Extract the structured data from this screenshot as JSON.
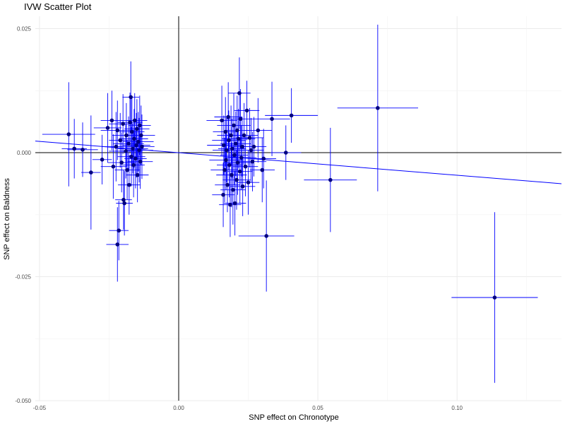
{
  "chart_data": {
    "type": "scatter",
    "title": "IVW Scatter Plot",
    "xlabel": "SNP effect on Chronotype",
    "ylabel": "SNP effect on Baldness",
    "xlim": [
      -0.0515,
      0.1375
    ],
    "ylim": [
      -0.05,
      0.0275
    ],
    "x_ticks": [
      {
        "value": -0.05,
        "label": "-0.05"
      },
      {
        "value": 0.0,
        "label": "0.00"
      },
      {
        "value": 0.05,
        "label": "0.05"
      },
      {
        "value": 0.1,
        "label": "0.10"
      }
    ],
    "y_ticks": [
      {
        "value": -0.05,
        "label": "-0.050"
      },
      {
        "value": -0.025,
        "label": "-0.025"
      },
      {
        "value": 0.0,
        "label": "0.000"
      },
      {
        "value": 0.025,
        "label": "0.025"
      }
    ],
    "grid": true,
    "reference_lines": {
      "x": 0,
      "y": 0
    },
    "ivw_line": {
      "intercept": 0,
      "slope": -0.0455
    },
    "colors": {
      "points": "#000080",
      "errorbars": "#0000ff",
      "ivw_line": "#0000ff",
      "reference": "#000000",
      "grid": "#ebebeb"
    },
    "points": [
      {
        "x": -0.0395,
        "y": 0.0037,
        "x_se": 0.0095,
        "y_se": 0.0105
      },
      {
        "x": -0.0375,
        "y": 0.0008,
        "x_se": 0.0045,
        "y_se": 0.006
      },
      {
        "x": -0.0345,
        "y": 0.0006,
        "x_se": 0.0055,
        "y_se": 0.0055
      },
      {
        "x": -0.0315,
        "y": -0.004,
        "x_se": 0.0035,
        "y_se": 0.0115
      },
      {
        "x": -0.0275,
        "y": -0.0014,
        "x_se": 0.0035,
        "y_se": 0.005
      },
      {
        "x": -0.0255,
        "y": 0.005,
        "x_se": 0.005,
        "y_se": 0.007
      },
      {
        "x": -0.024,
        "y": 0.0065,
        "x_se": 0.004,
        "y_se": 0.006
      },
      {
        "x": -0.0235,
        "y": -0.0028,
        "x_se": 0.0045,
        "y_se": 0.0065
      },
      {
        "x": -0.0225,
        "y": 0.0012,
        "x_se": 0.005,
        "y_se": 0.007
      },
      {
        "x": -0.022,
        "y": 0.0045,
        "x_se": 0.006,
        "y_se": 0.006
      },
      {
        "x": -0.022,
        "y": -0.0185,
        "x_se": 0.004,
        "y_se": 0.0075
      },
      {
        "x": -0.0215,
        "y": -0.0157,
        "x_se": 0.0035,
        "y_se": 0.006
      },
      {
        "x": -0.021,
        "y": 0.0025,
        "x_se": 0.004,
        "y_se": 0.0055
      },
      {
        "x": -0.0205,
        "y": -0.002,
        "x_se": 0.005,
        "y_se": 0.006
      },
      {
        "x": -0.02,
        "y": 0.0058,
        "x_se": 0.005,
        "y_se": 0.006
      },
      {
        "x": -0.0198,
        "y": -0.0095,
        "x_se": 0.003,
        "y_se": 0.006
      },
      {
        "x": -0.0195,
        "y": -0.0102,
        "x_se": 0.003,
        "y_se": 0.0065
      },
      {
        "x": -0.019,
        "y": 0.0003,
        "x_se": 0.006,
        "y_se": 0.0055
      },
      {
        "x": -0.0188,
        "y": 0.0035,
        "x_se": 0.005,
        "y_se": 0.0065
      },
      {
        "x": -0.0185,
        "y": -0.0035,
        "x_se": 0.0045,
        "y_se": 0.006
      },
      {
        "x": -0.018,
        "y": 0.0018,
        "x_se": 0.0055,
        "y_se": 0.0055
      },
      {
        "x": -0.0178,
        "y": -0.0065,
        "x_se": 0.004,
        "y_se": 0.006
      },
      {
        "x": -0.0175,
        "y": 0.0061,
        "x_se": 0.0045,
        "y_se": 0.006
      },
      {
        "x": -0.0172,
        "y": 0.0112,
        "x_se": 0.003,
        "y_se": 0.0072
      },
      {
        "x": -0.017,
        "y": -0.0008,
        "x_se": 0.005,
        "y_se": 0.006
      },
      {
        "x": -0.0168,
        "y": 0.0042,
        "x_se": 0.0045,
        "y_se": 0.007
      },
      {
        "x": -0.0165,
        "y": 0.0008,
        "x_se": 0.0055,
        "y_se": 0.005
      },
      {
        "x": -0.0162,
        "y": -0.0025,
        "x_se": 0.004,
        "y_se": 0.0065
      },
      {
        "x": -0.016,
        "y": 0.0028,
        "x_se": 0.005,
        "y_se": 0.006
      },
      {
        "x": -0.0158,
        "y": 0.0065,
        "x_se": 0.0045,
        "y_se": 0.0055
      },
      {
        "x": -0.0155,
        "y": -0.0012,
        "x_se": 0.004,
        "y_se": 0.006
      },
      {
        "x": -0.0152,
        "y": 0.0015,
        "x_se": 0.005,
        "y_se": 0.0065
      },
      {
        "x": -0.015,
        "y": 0.0048,
        "x_se": 0.0045,
        "y_se": 0.006
      },
      {
        "x": -0.0148,
        "y": -0.0045,
        "x_se": 0.004,
        "y_se": 0.0055
      },
      {
        "x": -0.0145,
        "y": 0.0022,
        "x_se": 0.0055,
        "y_se": 0.006
      },
      {
        "x": -0.0142,
        "y": 0.0005,
        "x_se": 0.005,
        "y_se": 0.0065
      },
      {
        "x": -0.014,
        "y": 0.0055,
        "x_se": 0.004,
        "y_se": 0.006
      },
      {
        "x": -0.0138,
        "y": -0.0018,
        "x_se": 0.0045,
        "y_se": 0.0055
      },
      {
        "x": -0.0135,
        "y": 0.0035,
        "x_se": 0.005,
        "y_se": 0.006
      },
      {
        "x": -0.0132,
        "y": 0.0012,
        "x_se": 0.0045,
        "y_se": 0.0065
      },
      {
        "x": 0.0155,
        "y": 0.0065,
        "x_se": 0.0055,
        "y_se": 0.007
      },
      {
        "x": 0.016,
        "y": -0.0085,
        "x_se": 0.004,
        "y_se": 0.0065
      },
      {
        "x": 0.0162,
        "y": 0.0015,
        "x_se": 0.006,
        "y_se": 0.006
      },
      {
        "x": 0.0165,
        "y": -0.0035,
        "x_se": 0.005,
        "y_se": 0.0065
      },
      {
        "x": 0.0168,
        "y": 0.0042,
        "x_se": 0.0045,
        "y_se": 0.007
      },
      {
        "x": 0.017,
        "y": -0.0015,
        "x_se": 0.006,
        "y_se": 0.006
      },
      {
        "x": 0.0172,
        "y": 0.0005,
        "x_se": 0.005,
        "y_se": 0.0065
      },
      {
        "x": 0.0175,
        "y": -0.0065,
        "x_se": 0.0045,
        "y_se": 0.0055
      },
      {
        "x": 0.0178,
        "y": 0.0072,
        "x_se": 0.005,
        "y_se": 0.007
      },
      {
        "x": 0.018,
        "y": 0.0025,
        "x_se": 0.006,
        "y_se": 0.006
      },
      {
        "x": 0.0182,
        "y": -0.0025,
        "x_se": 0.0045,
        "y_se": 0.0065
      },
      {
        "x": 0.0185,
        "y": -0.0105,
        "x_se": 0.004,
        "y_se": 0.0065
      },
      {
        "x": 0.0188,
        "y": 0.0035,
        "x_se": 0.005,
        "y_se": 0.006
      },
      {
        "x": 0.019,
        "y": -0.0045,
        "x_se": 0.0055,
        "y_se": 0.0065
      },
      {
        "x": 0.0192,
        "y": 0.0008,
        "x_se": 0.005,
        "y_se": 0.006
      },
      {
        "x": 0.0195,
        "y": -0.0075,
        "x_se": 0.0045,
        "y_se": 0.007
      },
      {
        "x": 0.0198,
        "y": 0.0055,
        "x_se": 0.006,
        "y_se": 0.0065
      },
      {
        "x": 0.02,
        "y": -0.0005,
        "x_se": 0.005,
        "y_se": 0.006
      },
      {
        "x": 0.0202,
        "y": -0.0102,
        "x_se": 0.004,
        "y_se": 0.0065
      },
      {
        "x": 0.0205,
        "y": 0.0018,
        "x_se": 0.0055,
        "y_se": 0.0065
      },
      {
        "x": 0.0208,
        "y": -0.0055,
        "x_se": 0.005,
        "y_se": 0.006
      },
      {
        "x": 0.021,
        "y": 0.0045,
        "x_se": 0.0045,
        "y_se": 0.007
      },
      {
        "x": 0.0212,
        "y": -0.002,
        "x_se": 0.005,
        "y_se": 0.0065
      },
      {
        "x": 0.0215,
        "y": 0.0028,
        "x_se": 0.006,
        "y_se": 0.006
      },
      {
        "x": 0.0218,
        "y": 0.012,
        "x_se": 0.004,
        "y_se": 0.0072
      },
      {
        "x": 0.022,
        "y": -0.0038,
        "x_se": 0.0045,
        "y_se": 0.0065
      },
      {
        "x": 0.0222,
        "y": 0.0068,
        "x_se": 0.005,
        "y_se": 0.006
      },
      {
        "x": 0.0225,
        "y": -0.001,
        "x_se": 0.0055,
        "y_se": 0.0065
      },
      {
        "x": 0.0228,
        "y": 0.0012,
        "x_se": 0.005,
        "y_se": 0.006
      },
      {
        "x": 0.023,
        "y": -0.0068,
        "x_se": 0.0045,
        "y_se": 0.006
      },
      {
        "x": 0.0235,
        "y": 0.0035,
        "x_se": 0.005,
        "y_se": 0.0065
      },
      {
        "x": 0.024,
        "y": -0.0028,
        "x_se": 0.0045,
        "y_se": 0.006
      },
      {
        "x": 0.0245,
        "y": 0.0085,
        "x_se": 0.0045,
        "y_se": 0.006
      },
      {
        "x": 0.025,
        "y": -0.006,
        "x_se": 0.004,
        "y_se": 0.0065
      },
      {
        "x": 0.0255,
        "y": 0.003,
        "x_se": 0.005,
        "y_se": 0.006
      },
      {
        "x": 0.026,
        "y": 0.0005,
        "x_se": 0.0045,
        "y_se": 0.0065
      },
      {
        "x": 0.0265,
        "y": -0.0018,
        "x_se": 0.005,
        "y_se": 0.006
      },
      {
        "x": 0.027,
        "y": 0.0012,
        "x_se": 0.0045,
        "y_se": 0.006
      },
      {
        "x": 0.0285,
        "y": 0.0045,
        "x_se": 0.005,
        "y_se": 0.0065
      },
      {
        "x": 0.03,
        "y": -0.0035,
        "x_se": 0.0045,
        "y_se": 0.0065
      },
      {
        "x": 0.0305,
        "y": -0.0012,
        "x_se": 0.0045,
        "y_se": 0.006
      },
      {
        "x": 0.0315,
        "y": -0.0168,
        "x_se": 0.01,
        "y_se": 0.0112
      },
      {
        "x": 0.0335,
        "y": 0.0068,
        "x_se": 0.0065,
        "y_se": 0.0075
      },
      {
        "x": 0.0385,
        "y": 0.0,
        "x_se": 0.0055,
        "y_se": 0.0055
      },
      {
        "x": 0.0405,
        "y": 0.0075,
        "x_se": 0.0095,
        "y_se": 0.0055
      },
      {
        "x": 0.0545,
        "y": -0.0055,
        "x_se": 0.0095,
        "y_se": 0.0105
      },
      {
        "x": 0.0715,
        "y": 0.009,
        "x_se": 0.0145,
        "y_se": 0.0168
      },
      {
        "x": 0.1135,
        "y": -0.0292,
        "x_se": 0.0155,
        "y_se": 0.0172
      }
    ]
  }
}
